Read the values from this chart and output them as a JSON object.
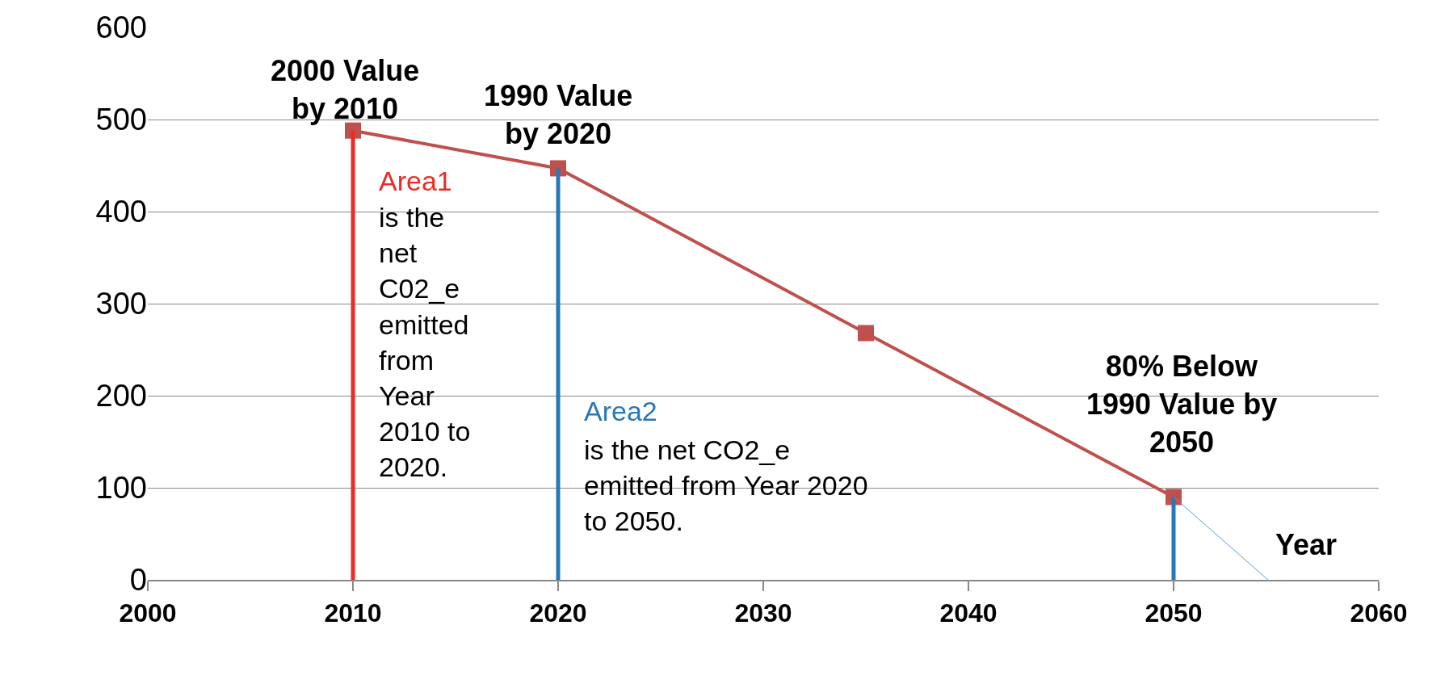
{
  "chart_data": {
    "type": "line",
    "xlabel": "Year",
    "xlim": [
      2000,
      2060
    ],
    "xticks": [
      2000,
      2010,
      2020,
      2030,
      2040,
      2050,
      2060
    ],
    "ylim": [
      0,
      600
    ],
    "yticks": [
      0,
      100,
      200,
      300,
      400,
      500,
      600
    ],
    "grid": "y",
    "legend": false,
    "series": [
      {
        "color": "#c0504d",
        "x": [
          2010,
          2020,
          2035,
          2050
        ],
        "values": [
          488,
          447,
          268,
          90
        ],
        "marker": "square"
      },
      {
        "name": "Area1",
        "color": "#ee2a24",
        "x": [
          2010,
          2010
        ],
        "values": [
          0,
          488
        ],
        "marker": "none"
      },
      {
        "name": "Area2",
        "color": "#2878b8",
        "x": [
          2020,
          2020
        ],
        "values": [
          0,
          447
        ],
        "marker": "none"
      },
      {
        "color": "#2878b8",
        "x": [
          2050,
          2050
        ],
        "values": [
          0,
          90
        ],
        "marker": "none"
      },
      {
        "color": "#5b9bd5",
        "x": [
          2050,
          2054.6
        ],
        "values": [
          90,
          0
        ],
        "marker": "none"
      }
    ],
    "annotations": [
      {
        "text": "2000 Value by 2010",
        "x": 2010,
        "y": 488
      },
      {
        "text": "1990 Value by 2020",
        "x": 2020,
        "y": 447
      },
      {
        "text": "80% Below 1990 Value by 2050",
        "x": 2050,
        "y": 90
      },
      "is the net C02_e emitted from Year 2010 to 2020.",
      "is the net CO2_e emitted from Year 2020 to 2050."
    ]
  }
}
